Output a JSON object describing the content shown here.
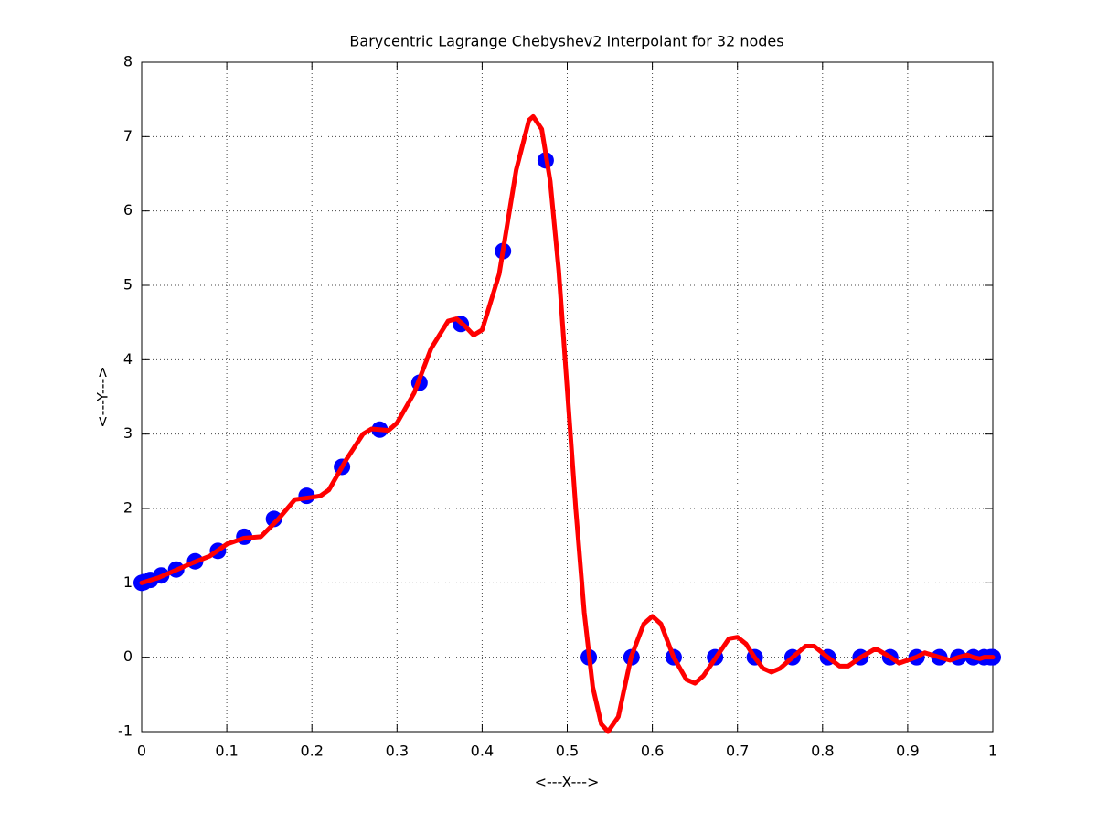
{
  "chart_data": {
    "type": "line",
    "title": "Barycentric Lagrange Chebyshev2 Interpolant for 32 nodes",
    "x_label": "<---X--->",
    "y_label": "<---Y--->",
    "xlim": [
      0,
      1
    ],
    "ylim": [
      -1,
      8
    ],
    "xticks": [
      0,
      0.1,
      0.2,
      0.3,
      0.4,
      0.5,
      0.6,
      0.7,
      0.8,
      0.9,
      1
    ],
    "yticks": [
      -1,
      0,
      1,
      2,
      3,
      4,
      5,
      6,
      7,
      8
    ],
    "grid": true,
    "series": [
      {
        "mode": "markers",
        "color": "#0000ff",
        "x": [
          0,
          0.00257,
          0.01024,
          0.02293,
          0.04052,
          0.06281,
          0.08957,
          0.12053,
          0.15537,
          0.19377,
          0.23534,
          0.27967,
          0.32635,
          0.37494,
          0.4245,
          0.47467,
          0.52533,
          0.5755,
          0.62506,
          0.67365,
          0.72033,
          0.76466,
          0.80623,
          0.84463,
          0.87947,
          0.91043,
          0.93719,
          0.95948,
          0.97707,
          0.98976,
          0.99743,
          1
        ],
        "values": [
          1,
          1.01,
          1.04,
          1.1,
          1.18,
          1.29,
          1.43,
          1.62,
          1.86,
          2.17,
          2.56,
          3.06,
          3.69,
          4.48,
          5.46,
          6.68,
          0,
          0,
          0,
          0,
          0,
          0,
          0,
          0,
          0,
          0,
          0,
          0,
          0,
          0,
          0,
          0
        ]
      },
      {
        "mode": "line",
        "color": "#ff0000",
        "x": [
          0,
          0.02,
          0.04,
          0.06,
          0.08,
          0.1,
          0.12,
          0.14,
          0.16,
          0.18,
          0.2,
          0.21,
          0.22,
          0.24,
          0.26,
          0.27,
          0.29,
          0.3,
          0.32,
          0.34,
          0.36,
          0.37,
          0.38,
          0.39,
          0.4,
          0.42,
          0.44,
          0.455,
          0.46,
          0.47,
          0.48,
          0.49,
          0.5,
          0.51,
          0.52,
          0.53,
          0.54,
          0.548,
          0.56,
          0.575,
          0.59,
          0.6,
          0.61,
          0.625,
          0.64,
          0.65,
          0.66,
          0.675,
          0.69,
          0.7,
          0.71,
          0.72,
          0.73,
          0.74,
          0.75,
          0.765,
          0.78,
          0.79,
          0.806,
          0.82,
          0.83,
          0.845,
          0.86,
          0.865,
          0.88,
          0.89,
          0.91,
          0.92,
          0.937,
          0.95,
          0.96,
          0.97,
          0.977,
          0.985,
          0.99,
          1
        ],
        "values": [
          1,
          1.07,
          1.17,
          1.27,
          1.36,
          1.52,
          1.6,
          1.62,
          1.85,
          2.12,
          2.15,
          2.17,
          2.25,
          2.65,
          3,
          3.07,
          3.05,
          3.15,
          3.55,
          4.15,
          4.52,
          4.55,
          4.45,
          4.33,
          4.4,
          5.15,
          6.55,
          7.22,
          7.27,
          7.1,
          6.4,
          5.2,
          3.6,
          2,
          0.6,
          -0.4,
          -0.9,
          -1,
          -0.8,
          0,
          0.45,
          0.55,
          0.45,
          0,
          -0.3,
          -0.35,
          -0.25,
          0,
          0.25,
          0.27,
          0.18,
          0,
          -0.15,
          -0.2,
          -0.15,
          0,
          0.15,
          0.15,
          0,
          -0.12,
          -0.12,
          0,
          0.1,
          0.1,
          0,
          -0.08,
          0,
          0.06,
          0,
          -0.04,
          0,
          0.03,
          0,
          -0.02,
          0,
          0
        ]
      }
    ]
  }
}
